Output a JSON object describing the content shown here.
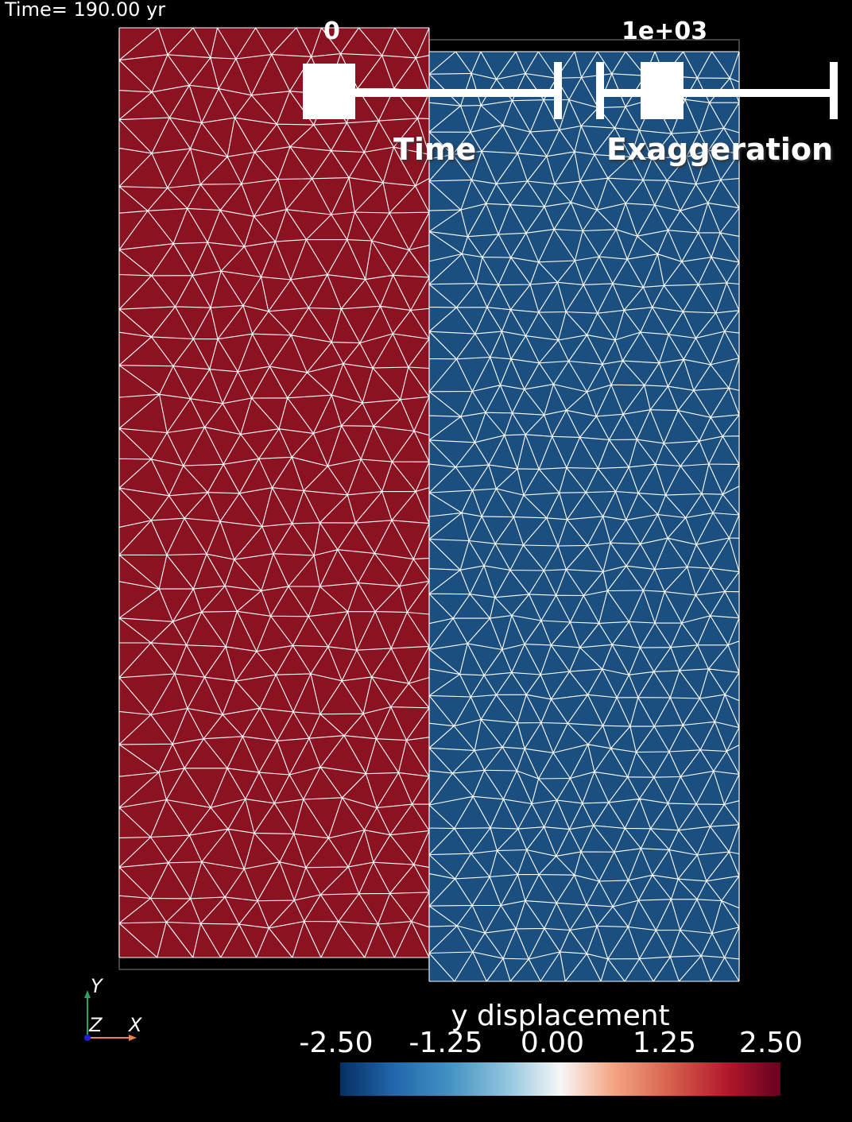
{
  "time_label": "Time= 190.00 yr",
  "sliders": {
    "time": {
      "label": "Time",
      "value_text": "0",
      "value": 0,
      "range": [
        0,
        1
      ]
    },
    "exaggeration": {
      "label": "Exaggeration",
      "value_text": "1e+03",
      "value": 1000
    }
  },
  "colorbar": {
    "title": "y displacement",
    "ticks": [
      "-2.50",
      "-1.25",
      "0.00",
      "1.25",
      "2.50"
    ],
    "range": [
      -2.5,
      2.5
    ],
    "colormap": "RdBu_r",
    "low_color": "#053061",
    "mid_color": "#f7f7f7",
    "high_color": "#67001f"
  },
  "blocks": {
    "left": {
      "color": "#8b1220",
      "displacement_sign": "positive"
    },
    "right": {
      "color": "#1b4f80",
      "displacement_sign": "negative"
    },
    "mesh_line_color": "#ffffff",
    "outline_color": "#555555"
  },
  "axes": {
    "y": "Y",
    "z": "Z",
    "x": "X",
    "y_color": "#2ca25f",
    "z_color": "#1f1fd6",
    "x_color": "#f08050"
  }
}
